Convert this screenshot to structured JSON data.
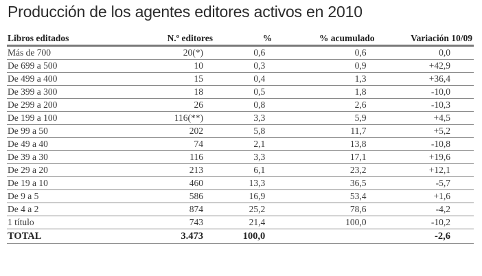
{
  "title": "Producción de los agentes editores activos en 2010",
  "table": {
    "headers": [
      "Libros editados",
      "N.º editores",
      "%",
      "% acumulado",
      "Variación 10/09"
    ],
    "rows": [
      [
        "Más de 700",
        "20(*)",
        "0,6",
        "0,6",
        "0,0"
      ],
      [
        "De 699 a 500",
        "10",
        "0,3",
        "0,9",
        "+42,9"
      ],
      [
        "De 499 a 400",
        "15",
        "0,4",
        "1,3",
        "+36,4"
      ],
      [
        "De 399 a 300",
        "18",
        "0,5",
        "1,8",
        "-10,0"
      ],
      [
        "De 299 a 200",
        "26",
        "0,8",
        "2,6",
        "-10,3"
      ],
      [
        "De 199 a 100",
        "116(**)",
        "3,3",
        "5,9",
        "+4,5"
      ],
      [
        "De 99 a 50",
        "202",
        "5,8",
        "11,7",
        "+5,2"
      ],
      [
        "De 49 a 40",
        "74",
        "2,1",
        "13,8",
        "-10,8"
      ],
      [
        "De 39 a 30",
        "116",
        "3,3",
        "17,1",
        "+19,6"
      ],
      [
        "De 29 a 20",
        "213",
        "6,1",
        "23,2",
        "+12,1"
      ],
      [
        "De 19 a 10",
        "460",
        "13,3",
        "36,5",
        "-5,7"
      ],
      [
        "De 9 a 5",
        "586",
        "16,9",
        "53,4",
        "+1,6"
      ],
      [
        "De 4 a 2",
        "874",
        "25,2",
        "78,6",
        "-4,2"
      ],
      [
        "1 título",
        "743",
        "21,4",
        "100,0",
        "-10,2"
      ]
    ],
    "total": [
      "TOTAL",
      "3.473",
      "100,0",
      "",
      "-2,6"
    ]
  }
}
